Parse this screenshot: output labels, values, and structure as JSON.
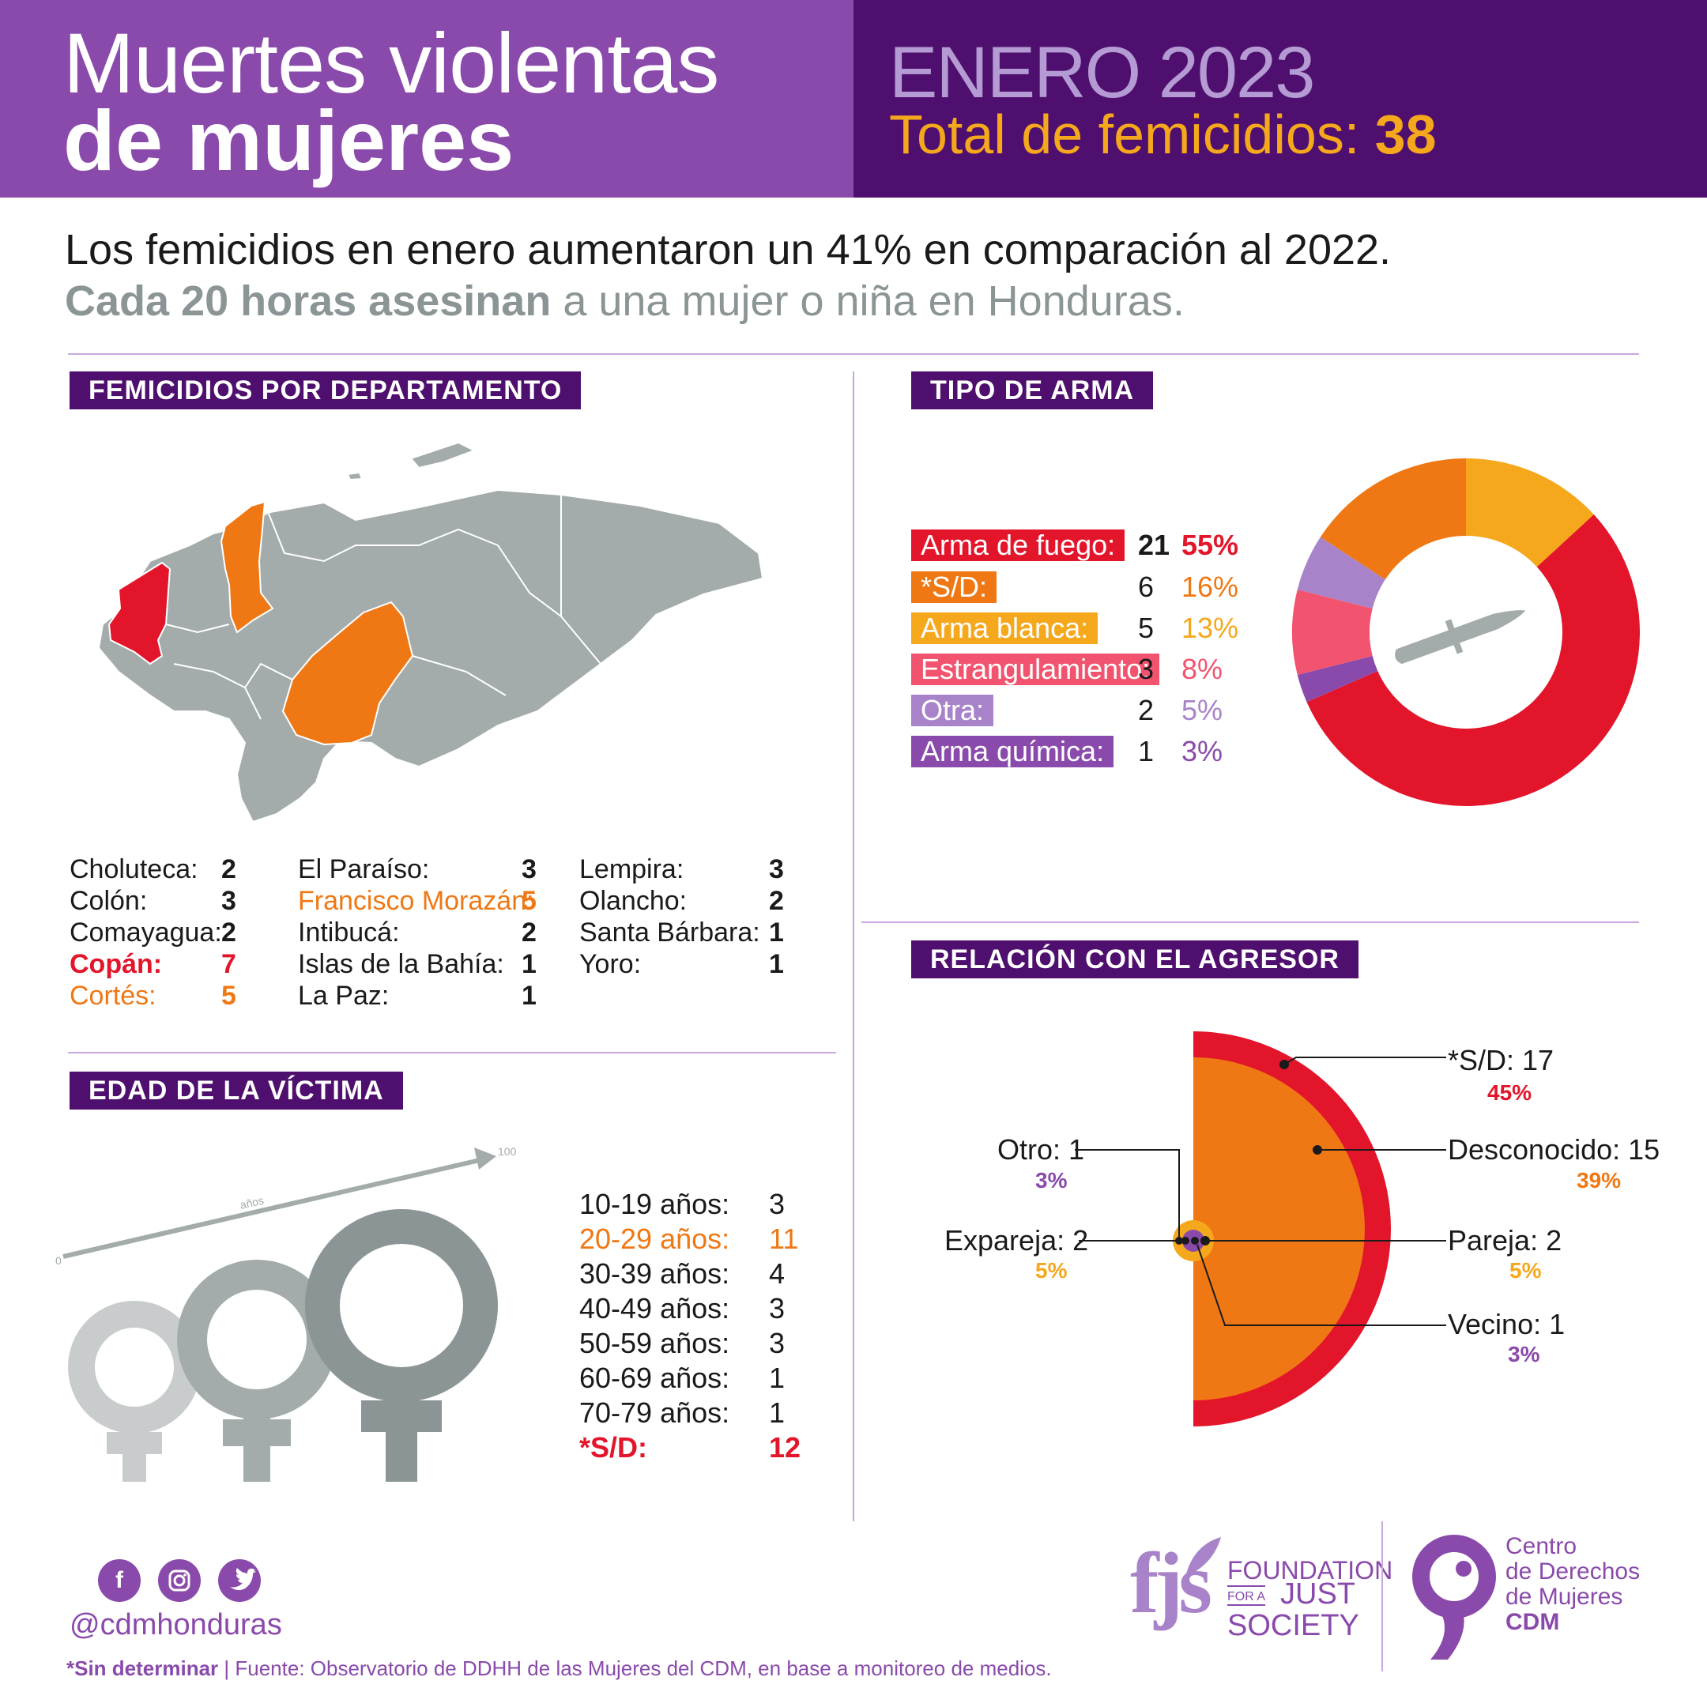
{
  "header": {
    "title_line1": "Muertes violentas",
    "title_line2": "de mujeres",
    "period": "ENERO 2023",
    "total_label": "Total de femicidios: ",
    "total_value": "38"
  },
  "intro": {
    "line1": "Los femicidios en enero aumentaron un 41% en comparación al 2022.",
    "line2_bold": "Cada 20 horas asesinan",
    "line2_rest": " a una mujer o niña en Honduras."
  },
  "sections": {
    "departments": "FEMICIDIOS POR DEPARTAMENTO",
    "weapon": "TIPO DE ARMA",
    "relation": "RELACIÓN CON EL AGRESOR",
    "age": "EDAD DE LA VÍCTIMA"
  },
  "departments": [
    {
      "name": "Choluteca:",
      "value": "2"
    },
    {
      "name": "Colón:",
      "value": "3"
    },
    {
      "name": "Comayagua:",
      "value": "2"
    },
    {
      "name": "Copán:",
      "value": "7"
    },
    {
      "name": "Cortés:",
      "value": "5"
    },
    {
      "name": "El Paraíso:",
      "value": "3"
    },
    {
      "name": "Francisco Morazán:",
      "value": "5"
    },
    {
      "name": "Intibucá:",
      "value": "2"
    },
    {
      "name": "Islas de la Bahía:",
      "value": "1"
    },
    {
      "name": "La Paz:",
      "value": "1"
    },
    {
      "name": "Lempira:",
      "value": "3"
    },
    {
      "name": "Olancho:",
      "value": "2"
    },
    {
      "name": "Santa Bárbara:",
      "value": "1"
    },
    {
      "name": "Yoro:",
      "value": "1"
    }
  ],
  "weapons": [
    {
      "label": "Arma de fuego:",
      "count": "21",
      "pct": "55%",
      "color": "#e3152b"
    },
    {
      "label": "*S/D:",
      "count": "6",
      "pct": "16%",
      "color": "#ef7814"
    },
    {
      "label": "Arma blanca:",
      "count": "5",
      "pct": "13%",
      "color": "#f5a81c"
    },
    {
      "label": "Estrangulamiento:",
      "count": "3",
      "pct": "8%",
      "color": "#f2546f"
    },
    {
      "label": "Otra:",
      "count": "2",
      "pct": "5%",
      "color": "#a983c9"
    },
    {
      "label": "Arma química:",
      "count": "1",
      "pct": "3%",
      "color": "#8a4aab"
    }
  ],
  "age": {
    "axis_start": "0",
    "axis_end": "100",
    "axis_label": "años",
    "rows": [
      {
        "label": "10-19 años:",
        "value": "3"
      },
      {
        "label": "20-29 años:",
        "value": "11"
      },
      {
        "label": "30-39 años:",
        "value": "4"
      },
      {
        "label": "40-49 años:",
        "value": "3"
      },
      {
        "label": "50-59 años:",
        "value": "3"
      },
      {
        "label": "60-69 años:",
        "value": "1"
      },
      {
        "label": "70-79 años:",
        "value": "1"
      },
      {
        "label": "*S/D:",
        "value": "12"
      }
    ]
  },
  "relation": [
    {
      "label": "*S/D: 17",
      "pct": "45%",
      "color": "#e3152b"
    },
    {
      "label": "Desconocido: 15",
      "pct": "39%",
      "color": "#ef7814"
    },
    {
      "label": "Pareja: 2",
      "pct": "5%",
      "color": "#f5a81c"
    },
    {
      "label": "Vecino: 1",
      "pct": "3%",
      "color": "#8a4aab"
    },
    {
      "label": "Otro: 1",
      "pct": "3%",
      "color": "#8a4aab"
    },
    {
      "label": "Expareja: 2",
      "pct": "5%",
      "color": "#f5a81c"
    }
  ],
  "footer": {
    "handle": "@cdmhonduras",
    "footnote_bold": "*Sin determinar",
    "footnote_rest": " | Fuente: Observatorio de DDHH de las Mujeres del CDM, en base a monitoreo de medios.",
    "fjs_mark": "fjs",
    "fjs_line1": "FOUNDATION",
    "fjs_line2a": "FOR A",
    "fjs_line2b": "JUST",
    "fjs_line3": "SOCIETY",
    "cdm_line1": "Centro",
    "cdm_line2": "de Derechos",
    "cdm_line3": "de Mujeres",
    "cdm_line4": "CDM"
  },
  "colors": {
    "purple": "#8a4aab",
    "dark_purple": "#4f0f6e",
    "red": "#e3152b",
    "orange": "#ef7814",
    "yellow": "#f5a81c",
    "gray": "#a3abab"
  }
}
